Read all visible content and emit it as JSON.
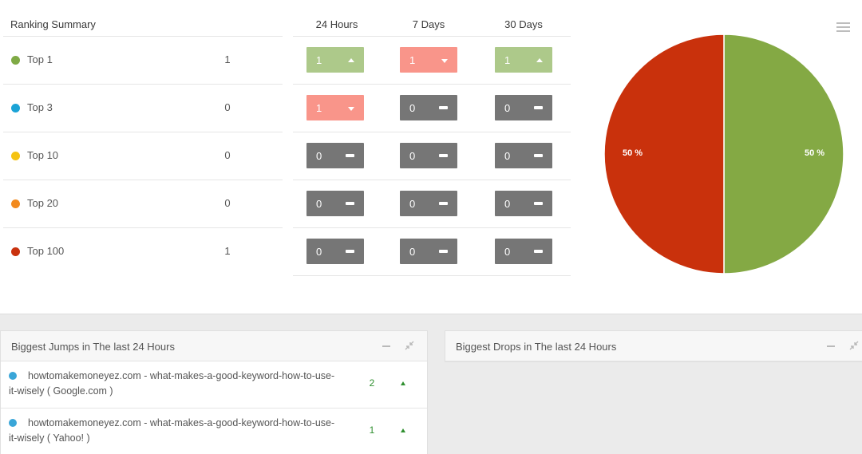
{
  "ranking": {
    "title": "Ranking Summary",
    "columns": [
      "24 Hours",
      "7 Days",
      "30 Days"
    ],
    "rows": [
      {
        "label": "Top 1",
        "count": "1",
        "color": "#7faa45",
        "changes": [
          {
            "value": "1",
            "trend": "up",
            "tone": "green"
          },
          {
            "value": "1",
            "trend": "down",
            "tone": "red"
          },
          {
            "value": "1",
            "trend": "up",
            "tone": "green"
          }
        ]
      },
      {
        "label": "Top 3",
        "count": "0",
        "color": "#1ba3d6",
        "changes": [
          {
            "value": "1",
            "trend": "down",
            "tone": "red"
          },
          {
            "value": "0",
            "trend": "none",
            "tone": "gray"
          },
          {
            "value": "0",
            "trend": "none",
            "tone": "gray"
          }
        ]
      },
      {
        "label": "Top 10",
        "count": "0",
        "color": "#f5c312",
        "changes": [
          {
            "value": "0",
            "trend": "none",
            "tone": "gray"
          },
          {
            "value": "0",
            "trend": "none",
            "tone": "gray"
          },
          {
            "value": "0",
            "trend": "none",
            "tone": "gray"
          }
        ]
      },
      {
        "label": "Top 20",
        "count": "0",
        "color": "#f28a1e",
        "changes": [
          {
            "value": "0",
            "trend": "none",
            "tone": "gray"
          },
          {
            "value": "0",
            "trend": "none",
            "tone": "gray"
          },
          {
            "value": "0",
            "trend": "none",
            "tone": "gray"
          }
        ]
      },
      {
        "label": "Top 100",
        "count": "1",
        "color": "#c9320f",
        "changes": [
          {
            "value": "0",
            "trend": "none",
            "tone": "gray"
          },
          {
            "value": "0",
            "trend": "none",
            "tone": "gray"
          },
          {
            "value": "0",
            "trend": "none",
            "tone": "gray"
          }
        ]
      }
    ]
  },
  "chart_data": {
    "type": "pie",
    "slices": [
      {
        "value": 50,
        "label": "50 %",
        "color": "#84a944"
      },
      {
        "value": 50,
        "label": "50 %",
        "color": "#c9310c"
      }
    ]
  },
  "chart_menu_icon": "hamburger-icon",
  "jumps_panel": {
    "title": "Biggest Jumps in The last 24 Hours",
    "items": [
      {
        "text": "howtomakemoneyez.com - what-makes-a-good-keyword-how-to-use-it-wisely ( Google.com )",
        "value": "2",
        "trend": "up"
      },
      {
        "text": "howtomakemoneyez.com - what-makes-a-good-keyword-how-to-use-it-wisely ( Yahoo! )",
        "value": "1",
        "trend": "up"
      }
    ]
  },
  "drops_panel": {
    "title": "Biggest Drops in The last 24 Hours",
    "items": []
  },
  "colors": {
    "up": "#2f8f2f",
    "chip_gray": "#767676",
    "chip_green": "#adc98a",
    "chip_red": "#f9958a"
  }
}
